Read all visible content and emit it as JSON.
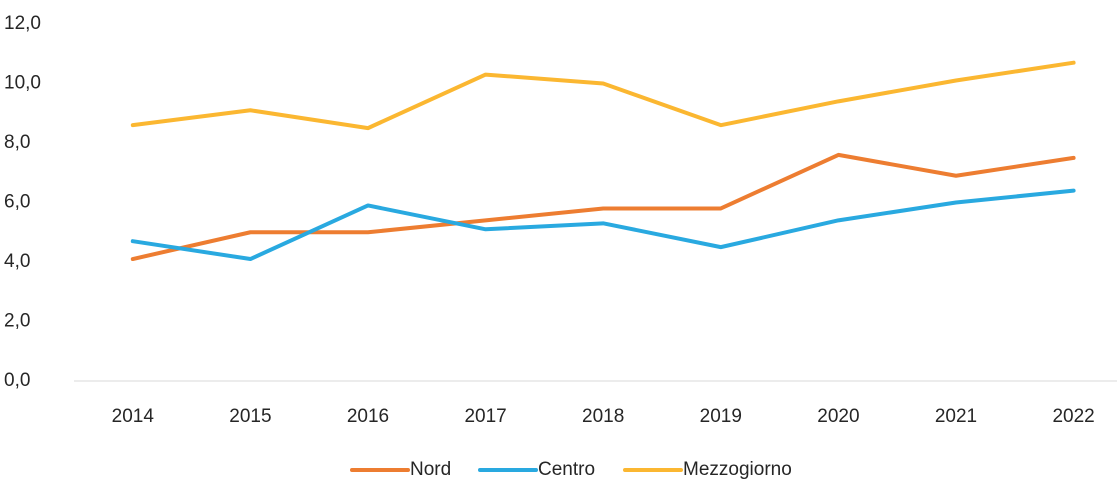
{
  "chart_data": {
    "type": "line",
    "categories": [
      "2014",
      "2015",
      "2016",
      "2017",
      "2018",
      "2019",
      "2020",
      "2021",
      "2022"
    ],
    "series": [
      {
        "name": "Nord",
        "color": "#ed7d31",
        "values": [
          4.1,
          5.0,
          5.0,
          5.4,
          5.8,
          5.8,
          7.6,
          6.9,
          7.5
        ]
      },
      {
        "name": "Centro",
        "color": "#29a9e0",
        "values": [
          4.7,
          4.1,
          5.9,
          5.1,
          5.3,
          4.5,
          5.4,
          6.0,
          6.4
        ]
      },
      {
        "name": "Mezzogiorno",
        "color": "#fbb731",
        "values": [
          8.6,
          9.1,
          8.5,
          10.3,
          10.0,
          8.6,
          9.4,
          10.1,
          10.7
        ]
      }
    ],
    "ylim": [
      0,
      12
    ],
    "yticks": [
      {
        "value": 0,
        "label": "0,0"
      },
      {
        "value": 2,
        "label": "2,0"
      },
      {
        "value": 4,
        "label": "4,0"
      },
      {
        "value": 6,
        "label": "6,0"
      },
      {
        "value": 8,
        "label": "8,0"
      },
      {
        "value": 10,
        "label": "10,0"
      },
      {
        "value": 12,
        "label": "12,0"
      }
    ],
    "legend": "bottom"
  }
}
